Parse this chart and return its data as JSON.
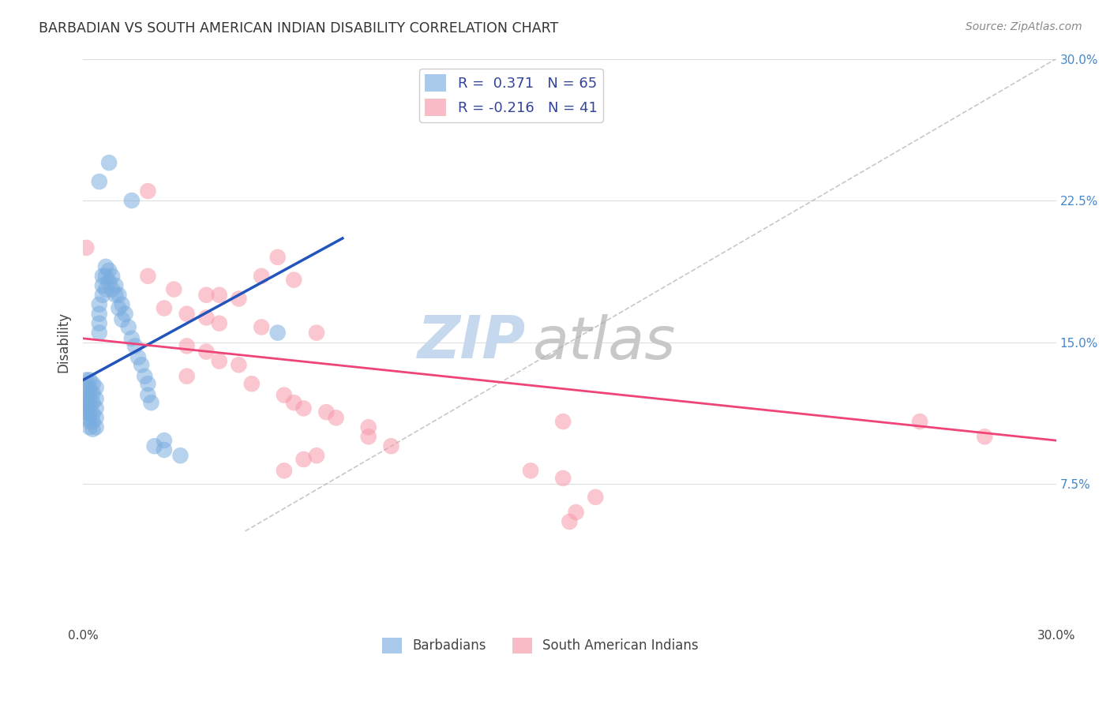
{
  "title": "BARBADIAN VS SOUTH AMERICAN INDIAN DISABILITY CORRELATION CHART",
  "source": "Source: ZipAtlas.com",
  "ylabel": "Disability",
  "legend_label_bottom": [
    "Barbadians",
    "South American Indians"
  ],
  "R_blue": 0.371,
  "N_blue": 65,
  "R_pink": -0.216,
  "N_pink": 41,
  "xlim": [
    0,
    0.3
  ],
  "ylim": [
    0,
    0.3
  ],
  "background_color": "#ffffff",
  "blue_color": "#7aaddf",
  "pink_color": "#f799aa",
  "blue_line_color": "#2255bb",
  "pink_line_color": "#ee4477",
  "grid_color": "#dddddd",
  "watermark_zip_color": "#c5d8ee",
  "watermark_atlas_color": "#c8c8c8",
  "blue_points": [
    [
      0.001,
      0.13
    ],
    [
      0.001,
      0.127
    ],
    [
      0.001,
      0.122
    ],
    [
      0.001,
      0.12
    ],
    [
      0.001,
      0.118
    ],
    [
      0.001,
      0.115
    ],
    [
      0.001,
      0.113
    ],
    [
      0.001,
      0.11
    ],
    [
      0.002,
      0.13
    ],
    [
      0.002,
      0.125
    ],
    [
      0.002,
      0.122
    ],
    [
      0.002,
      0.118
    ],
    [
      0.002,
      0.115
    ],
    [
      0.002,
      0.112
    ],
    [
      0.002,
      0.108
    ],
    [
      0.002,
      0.105
    ],
    [
      0.003,
      0.128
    ],
    [
      0.003,
      0.123
    ],
    [
      0.003,
      0.118
    ],
    [
      0.003,
      0.112
    ],
    [
      0.003,
      0.108
    ],
    [
      0.003,
      0.104
    ],
    [
      0.004,
      0.126
    ],
    [
      0.004,
      0.12
    ],
    [
      0.004,
      0.115
    ],
    [
      0.004,
      0.11
    ],
    [
      0.004,
      0.105
    ],
    [
      0.005,
      0.17
    ],
    [
      0.005,
      0.165
    ],
    [
      0.005,
      0.16
    ],
    [
      0.005,
      0.155
    ],
    [
      0.006,
      0.185
    ],
    [
      0.006,
      0.18
    ],
    [
      0.006,
      0.175
    ],
    [
      0.007,
      0.19
    ],
    [
      0.007,
      0.185
    ],
    [
      0.007,
      0.178
    ],
    [
      0.008,
      0.188
    ],
    [
      0.008,
      0.182
    ],
    [
      0.009,
      0.185
    ],
    [
      0.009,
      0.178
    ],
    [
      0.01,
      0.18
    ],
    [
      0.01,
      0.175
    ],
    [
      0.011,
      0.175
    ],
    [
      0.011,
      0.168
    ],
    [
      0.012,
      0.17
    ],
    [
      0.012,
      0.162
    ],
    [
      0.013,
      0.165
    ],
    [
      0.014,
      0.158
    ],
    [
      0.015,
      0.152
    ],
    [
      0.016,
      0.148
    ],
    [
      0.017,
      0.142
    ],
    [
      0.018,
      0.138
    ],
    [
      0.019,
      0.132
    ],
    [
      0.02,
      0.128
    ],
    [
      0.02,
      0.122
    ],
    [
      0.021,
      0.118
    ],
    [
      0.022,
      0.095
    ],
    [
      0.025,
      0.098
    ],
    [
      0.025,
      0.093
    ],
    [
      0.03,
      0.09
    ],
    [
      0.015,
      0.225
    ],
    [
      0.06,
      0.155
    ],
    [
      0.005,
      0.235
    ],
    [
      0.008,
      0.245
    ]
  ],
  "pink_points": [
    [
      0.001,
      0.2
    ],
    [
      0.02,
      0.23
    ],
    [
      0.06,
      0.195
    ],
    [
      0.02,
      0.185
    ],
    [
      0.055,
      0.185
    ],
    [
      0.065,
      0.183
    ],
    [
      0.028,
      0.178
    ],
    [
      0.038,
      0.175
    ],
    [
      0.042,
      0.175
    ],
    [
      0.048,
      0.173
    ],
    [
      0.025,
      0.168
    ],
    [
      0.032,
      0.165
    ],
    [
      0.038,
      0.163
    ],
    [
      0.042,
      0.16
    ],
    [
      0.055,
      0.158
    ],
    [
      0.072,
      0.155
    ],
    [
      0.032,
      0.148
    ],
    [
      0.038,
      0.145
    ],
    [
      0.042,
      0.14
    ],
    [
      0.048,
      0.138
    ],
    [
      0.032,
      0.132
    ],
    [
      0.052,
      0.128
    ],
    [
      0.062,
      0.122
    ],
    [
      0.065,
      0.118
    ],
    [
      0.068,
      0.115
    ],
    [
      0.075,
      0.113
    ],
    [
      0.078,
      0.11
    ],
    [
      0.088,
      0.105
    ],
    [
      0.088,
      0.1
    ],
    [
      0.095,
      0.095
    ],
    [
      0.148,
      0.108
    ],
    [
      0.258,
      0.108
    ],
    [
      0.072,
      0.09
    ],
    [
      0.068,
      0.088
    ],
    [
      0.278,
      0.1
    ],
    [
      0.062,
      0.082
    ],
    [
      0.138,
      0.082
    ],
    [
      0.148,
      0.078
    ],
    [
      0.158,
      0.068
    ],
    [
      0.152,
      0.06
    ],
    [
      0.15,
      0.055
    ]
  ],
  "blue_line_x": [
    0.0,
    0.08
  ],
  "blue_line_y": [
    0.13,
    0.205
  ],
  "pink_line_x": [
    0.0,
    0.3
  ],
  "pink_line_y": [
    0.152,
    0.098
  ],
  "diag_line_x": [
    0.05,
    0.3
  ],
  "diag_line_y": [
    0.05,
    0.3
  ]
}
